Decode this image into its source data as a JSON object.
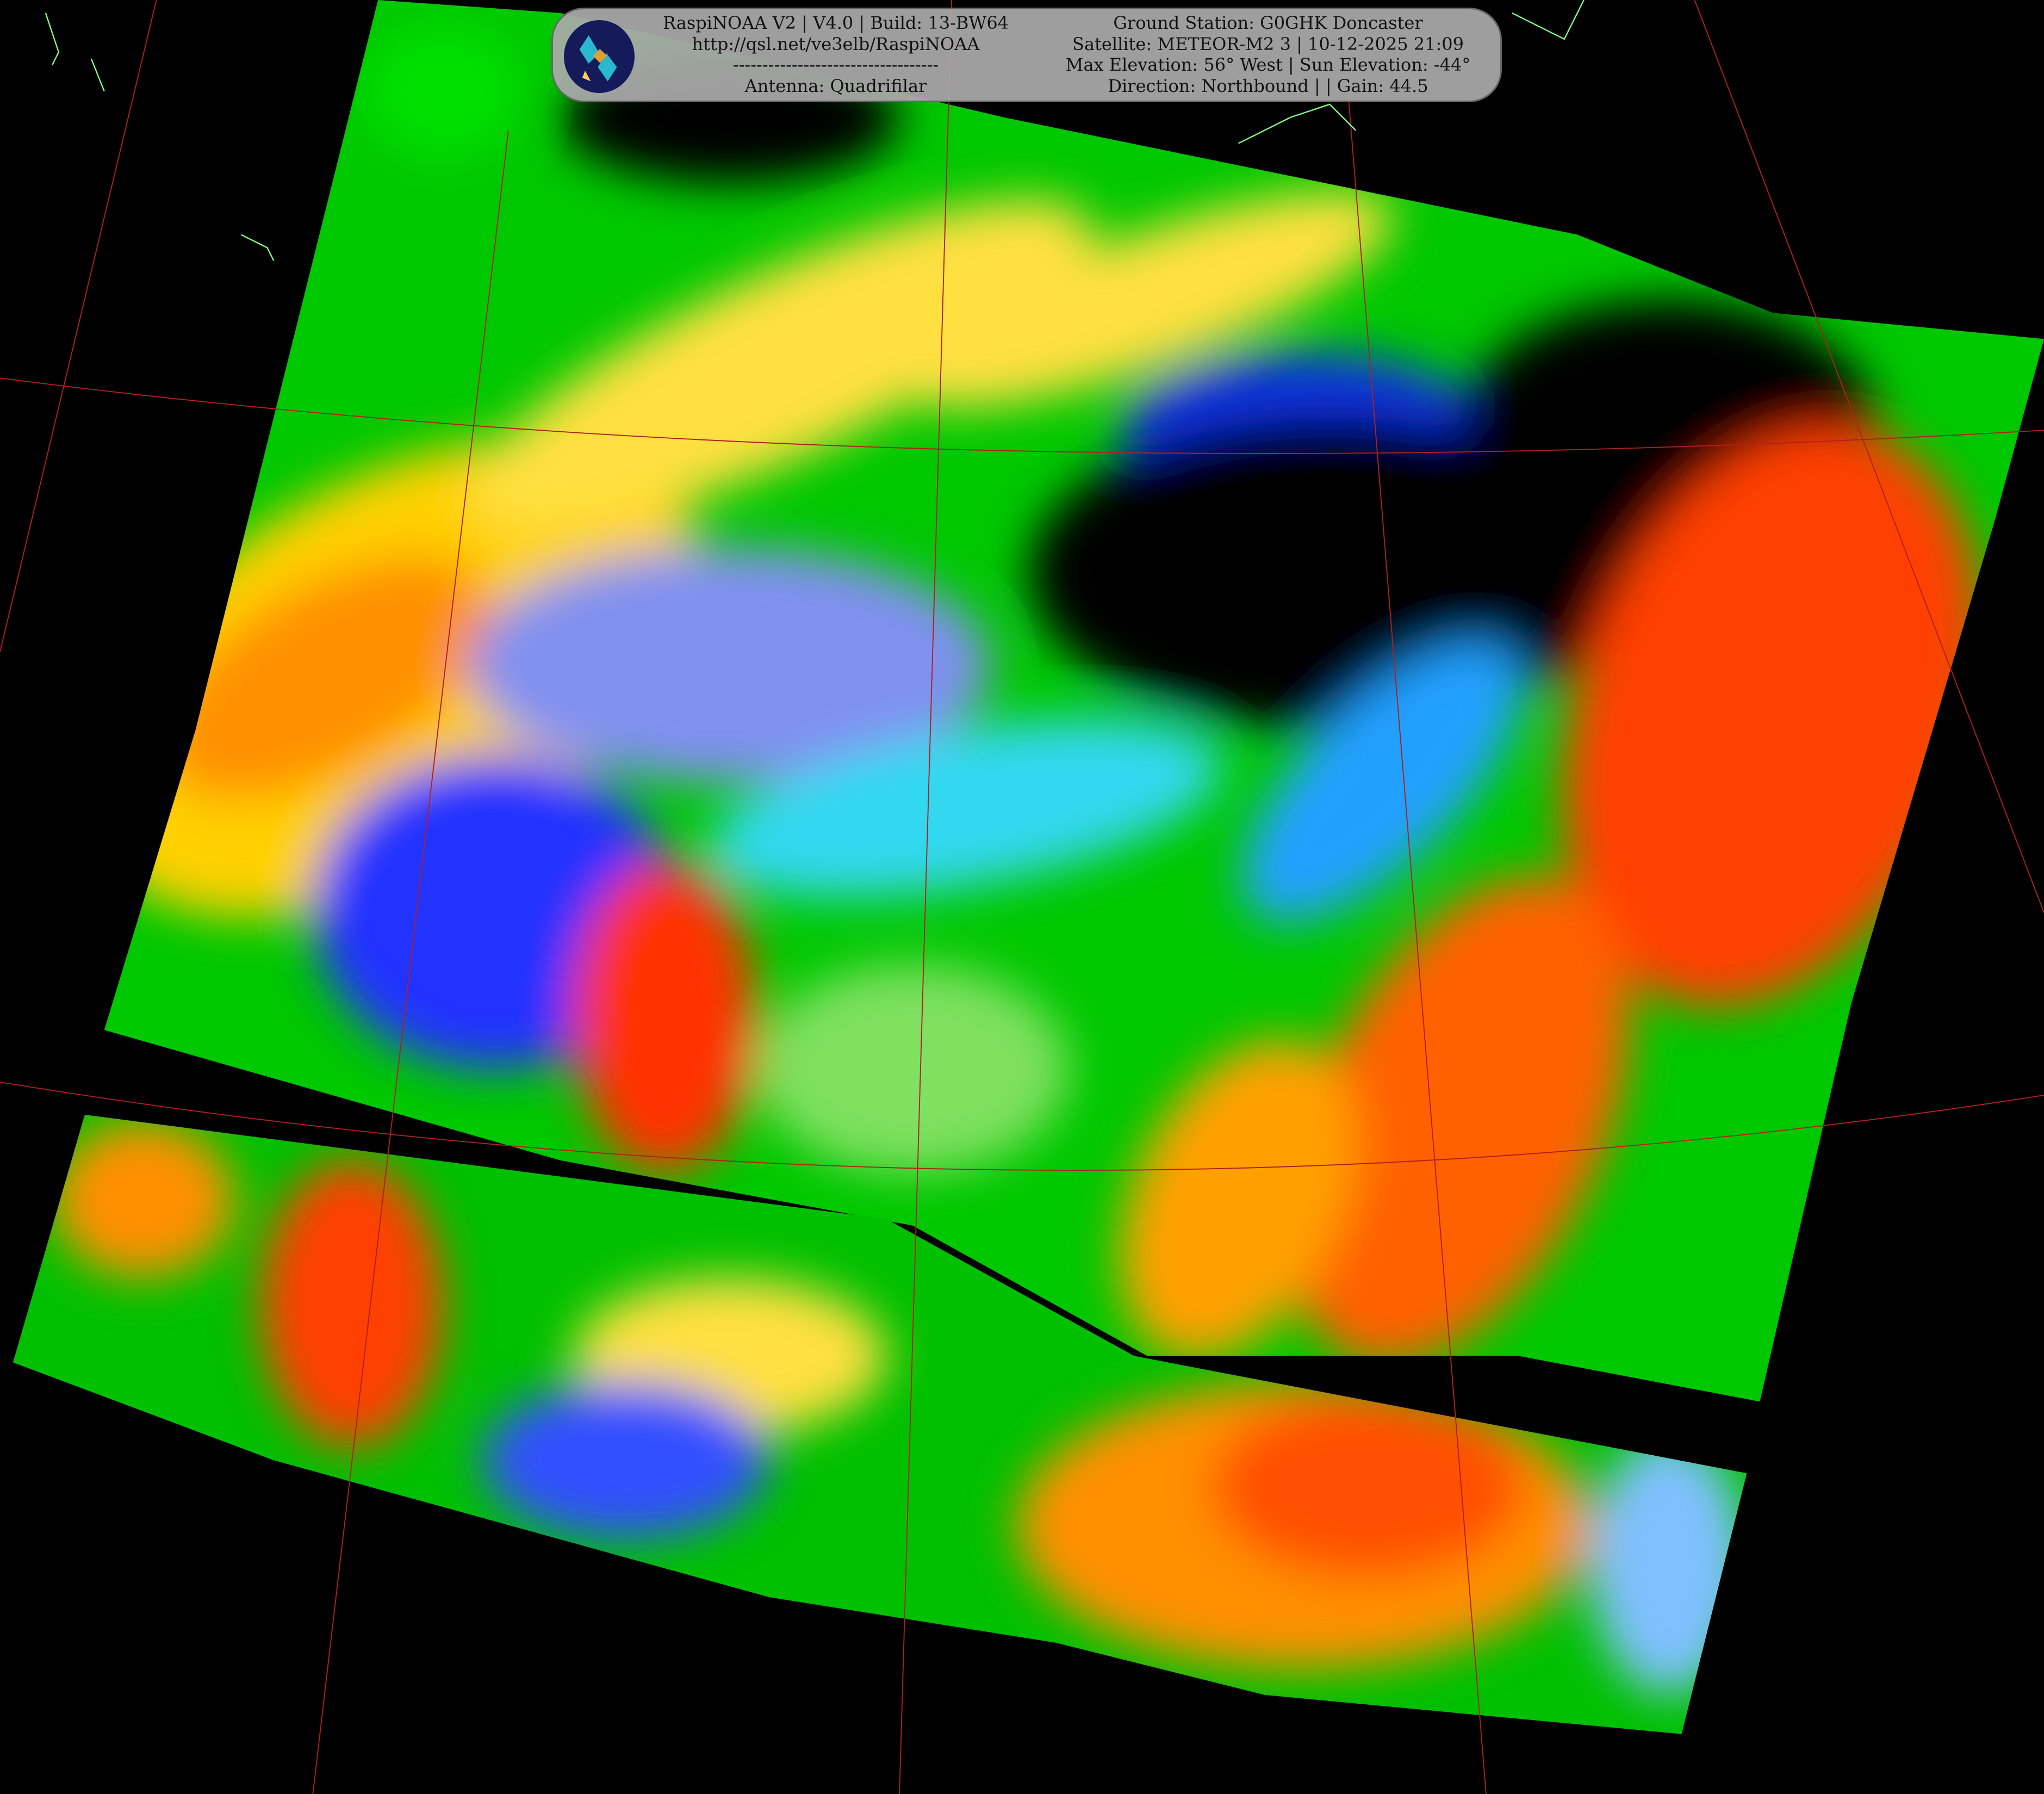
{
  "banner": {
    "left": {
      "line1": "RaspiNOAA V2 | V4.0 | Build: 13-BW64",
      "line2": "http://qsl.net/ve3elb/RaspiNOAA",
      "line3": "-----------------------------------",
      "line4": "Antenna: Quadrifilar"
    },
    "right": {
      "line1": "Ground Station: G0GHK Doncaster",
      "line2": "Satellite: METEOR-M2 3 | 10-12-2025 21:09",
      "line3": "Max Elevation: 56° West | Sun Elevation: -44°",
      "line4": "Direction: Northbound | | Gain: 44.5"
    },
    "logo_icon": "satellite-icon"
  },
  "image": {
    "palette": [
      "#000000",
      "#30e0ff",
      "#2040ff",
      "#00d000",
      "#ffff30",
      "#ff9000",
      "#ff2000"
    ],
    "grid_color": "#b02020",
    "coastline_color": "#80ff80"
  }
}
